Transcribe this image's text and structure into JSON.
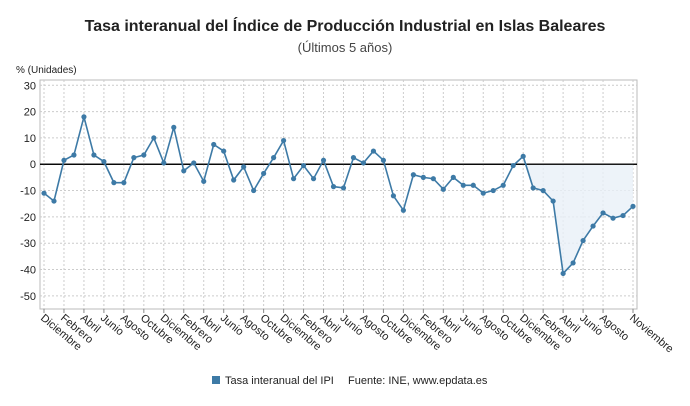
{
  "chart_data": {
    "type": "line",
    "title": "Tasa interanual del Índice de Producción Industrial en Islas Baleares",
    "subtitle": "(Últimos 5 años)",
    "y_label": "% (Unidades)",
    "source": "Fuente: INE, www.epdata.es",
    "categories": [
      "Diciembre",
      null,
      "Febrero",
      null,
      "Abril",
      null,
      "Junio",
      null,
      "Agosto",
      null,
      "Octubre",
      null,
      "Diciembre",
      null,
      "Febrero",
      null,
      "Abril",
      null,
      "Junio",
      null,
      "Agosto",
      null,
      "Octubre",
      null,
      "Diciembre",
      null,
      "Febrero",
      null,
      "Abril",
      null,
      "Junio",
      null,
      "Agosto",
      null,
      "Octubre",
      null,
      "Diciembre",
      null,
      "Febrero",
      null,
      "Abril",
      null,
      "Junio",
      null,
      "Agosto",
      null,
      "Octubre",
      null,
      "Diciembre",
      null,
      "Febrero",
      null,
      "Abril",
      null,
      "Junio",
      null,
      "Agosto",
      null,
      null,
      "Noviembre"
    ],
    "series": [
      {
        "name": "Tasa interanual del IPI",
        "color": "#3d7aa6",
        "values": [
          -11,
          -14,
          1.5,
          3.5,
          18,
          3.5,
          1,
          -7,
          -7,
          2.5,
          3.5,
          10,
          0.5,
          14,
          -2.5,
          0.5,
          -6.5,
          7.5,
          5,
          -6,
          -1,
          -10,
          -3.5,
          2.5,
          9,
          -5.5,
          -0.5,
          -5.5,
          1.5,
          -8.5,
          -9,
          2.5,
          0.5,
          5,
          1.5,
          -12,
          -17.5,
          -4,
          -5,
          -5.5,
          -9.5,
          -5,
          -8,
          -8,
          -11,
          -10,
          -8,
          -0.5,
          3,
          -9,
          -10,
          -14,
          -41.5,
          -37.5,
          -29,
          -23.5,
          -18.5,
          -20.5,
          -19.5,
          -16
        ]
      }
    ],
    "ylim": [
      -55,
      32
    ],
    "yticks": [
      -50,
      -40,
      -30,
      -20,
      -10,
      0,
      10,
      20,
      30
    ],
    "grid": true,
    "legend": "bottom"
  }
}
